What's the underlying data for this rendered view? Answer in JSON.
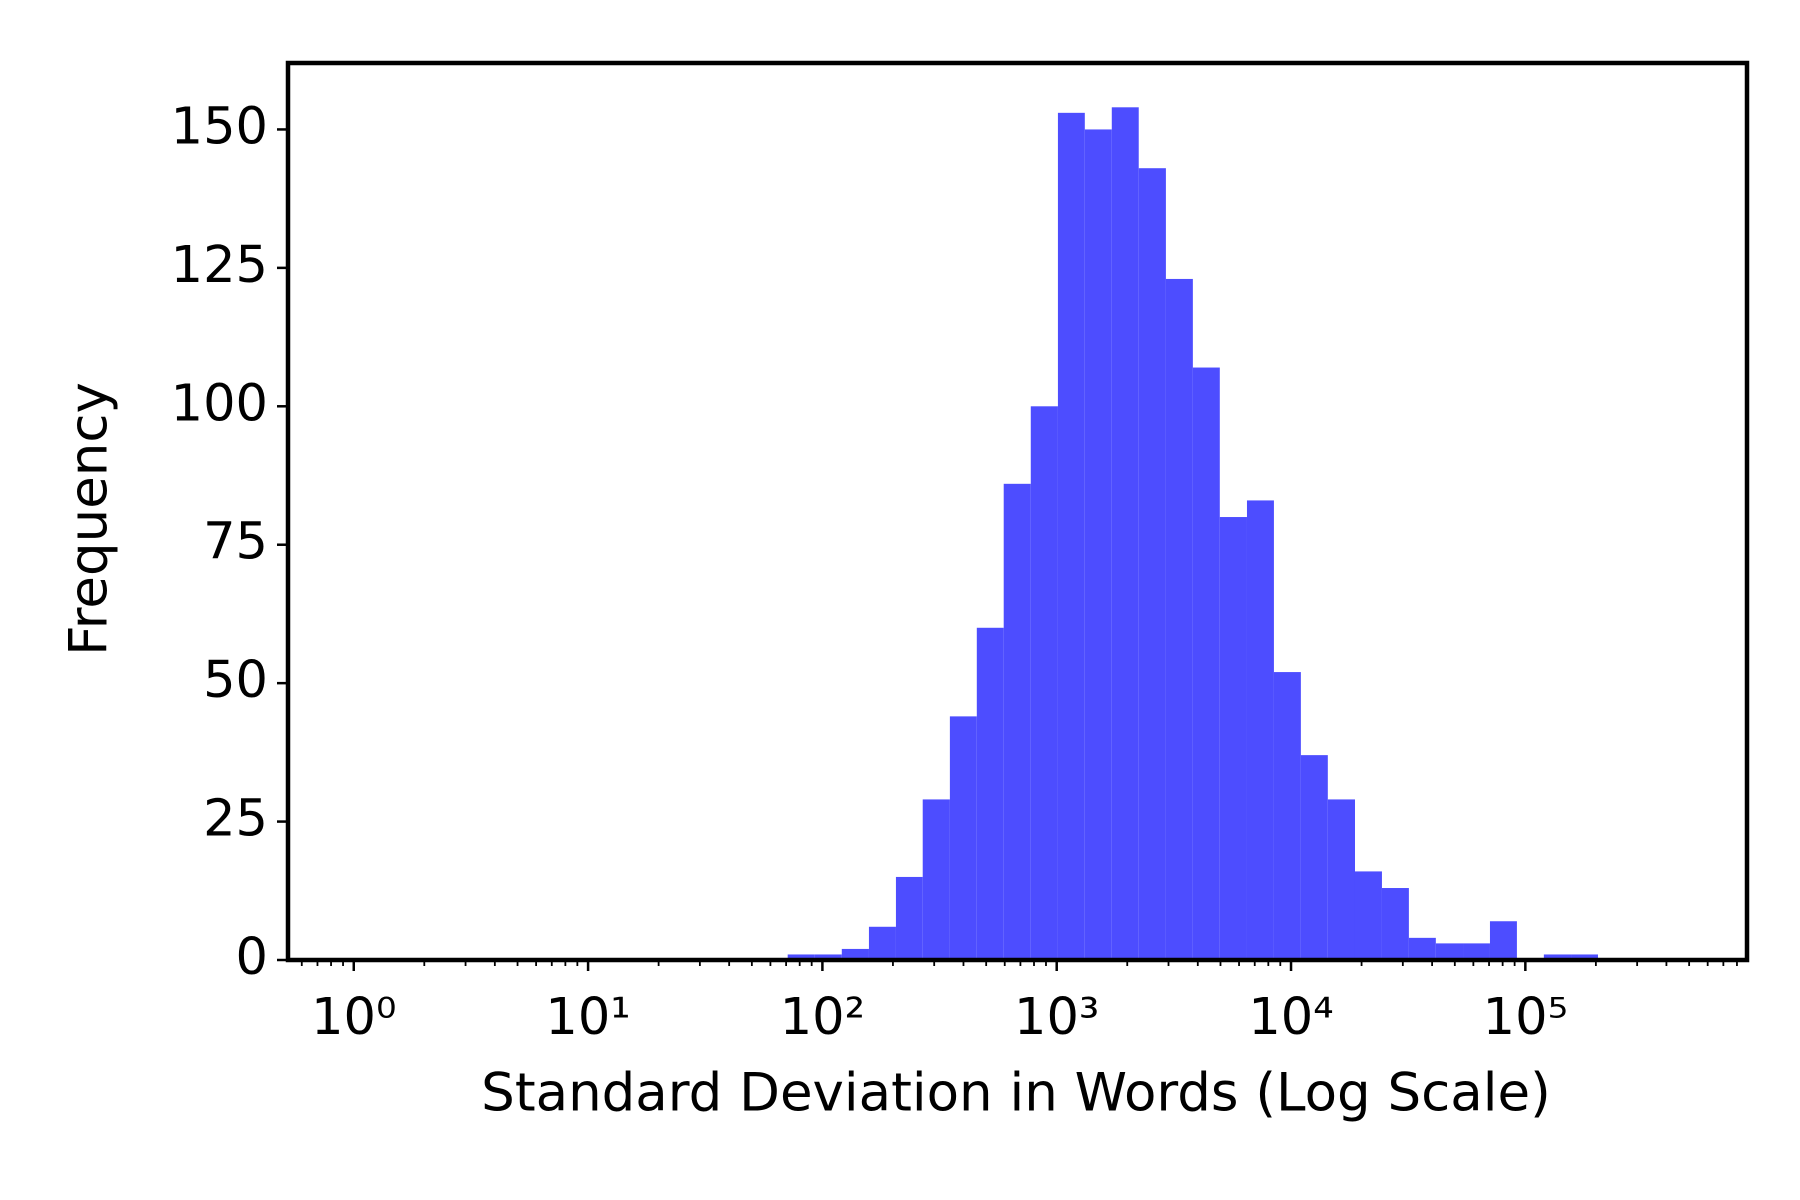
{
  "chart_data": {
    "type": "histogram",
    "x_label": "Standard Deviation in Words (Log Scale)",
    "y_label": "Frequency",
    "xscale": "log",
    "color": "#4d4dff",
    "bins": [
      71.1,
      92.7,
      121,
      158,
      206,
      268,
      350,
      456,
      594,
      775,
      1012,
      1318,
      1718,
      2239,
      2924,
      3811,
      4966,
      6486,
      8453,
      11015,
      14355,
      18750,
      24434,
      31842,
      41495,
      54200,
      70630,
      92045,
      119950,
      156675,
      204174
    ],
    "values": [
      1,
      1,
      2,
      6,
      15,
      29,
      44,
      60,
      86,
      100,
      153,
      150,
      154,
      143,
      123,
      107,
      80,
      83,
      52,
      37,
      29,
      16,
      13,
      4,
      3,
      3,
      7,
      0,
      1,
      1
    ],
    "xlim": [
      0.524,
      883000
    ],
    "ylim": [
      0,
      162
    ],
    "xticks": [
      {
        "value": 1,
        "label": "10⁰"
      },
      {
        "value": 10,
        "label": "10¹"
      },
      {
        "value": 100,
        "label": "10²"
      },
      {
        "value": 1000,
        "label": "10³"
      },
      {
        "value": 10000,
        "label": "10⁴"
      },
      {
        "value": 100000,
        "label": "10⁵"
      }
    ],
    "xticks_minor": [
      0.6,
      0.7,
      0.8,
      0.9,
      2,
      3,
      4,
      5,
      6,
      7,
      8,
      9,
      20,
      30,
      40,
      50,
      60,
      70,
      80,
      90,
      200,
      300,
      400,
      500,
      600,
      700,
      800,
      900,
      2000,
      3000,
      4000,
      5000,
      6000,
      7000,
      8000,
      9000,
      20000,
      30000,
      40000,
      50000,
      60000,
      70000,
      80000,
      90000,
      200000,
      300000,
      400000,
      500000,
      600000,
      700000,
      800000
    ],
    "yticks": [
      0,
      25,
      50,
      75,
      100,
      125,
      150
    ]
  }
}
